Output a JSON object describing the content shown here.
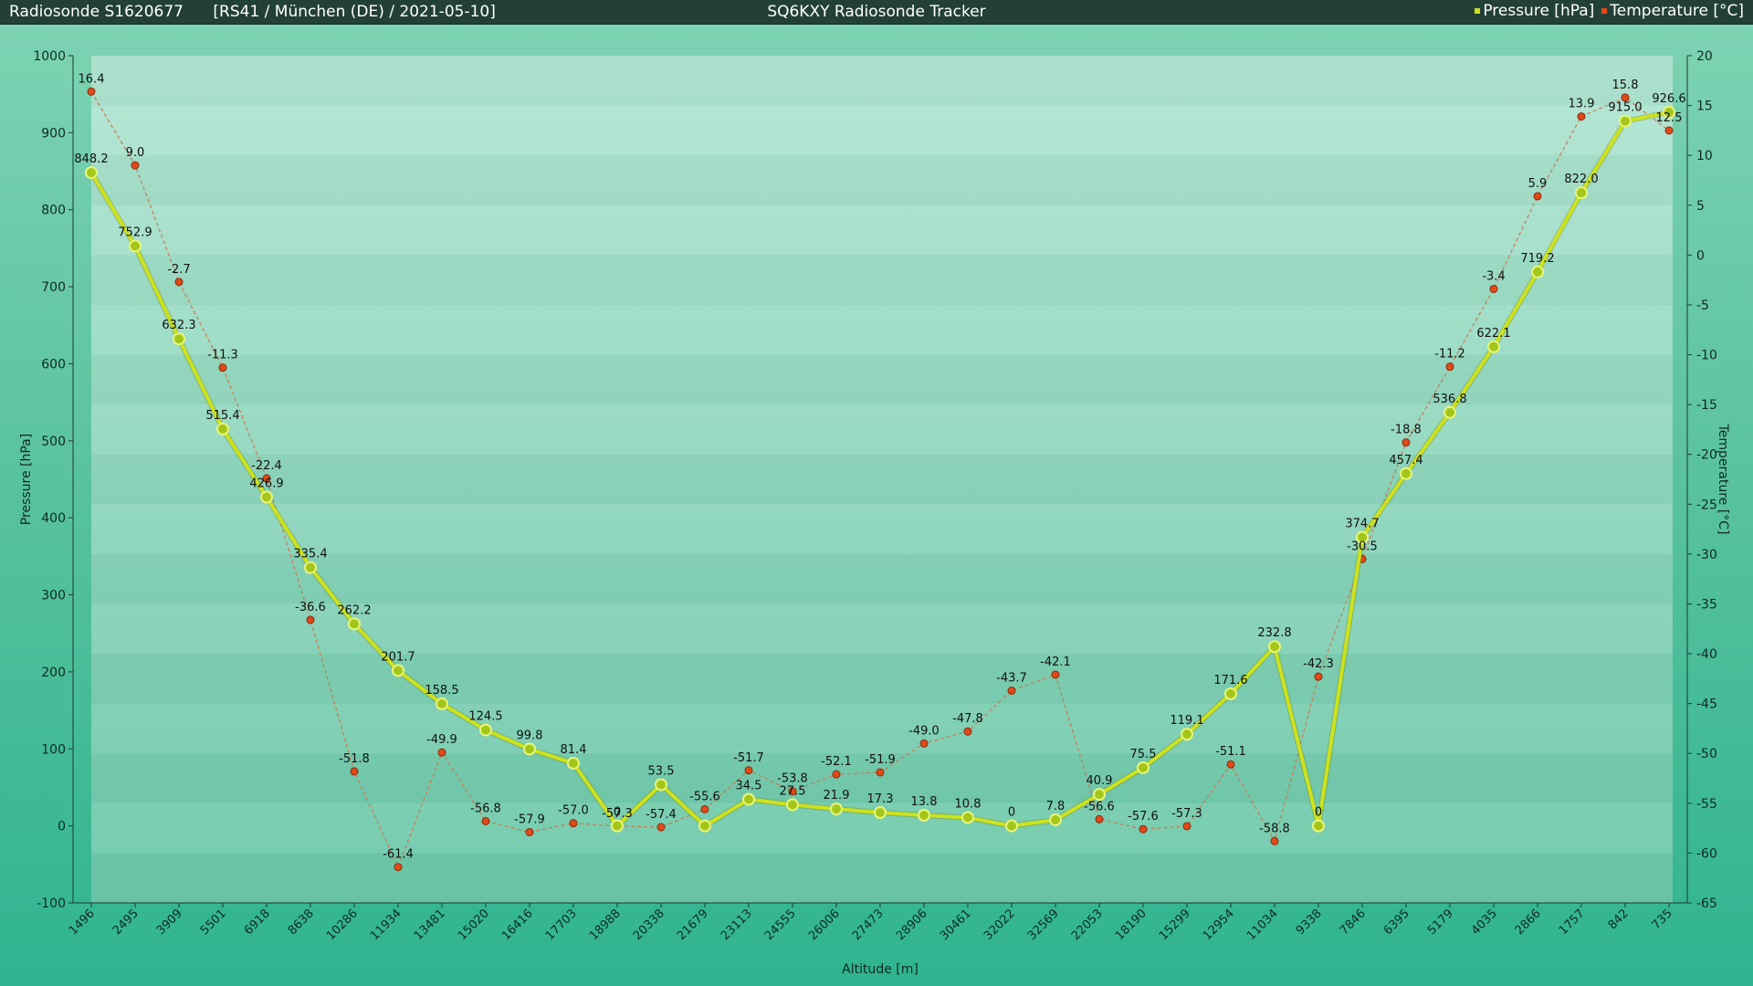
{
  "header": {
    "sonde_title": "Radiosonde S1620677",
    "sonde_info": "[RS41 / München (DE) / 2021-05-10]",
    "app_title": "SQ6KXY Radiosonde Tracker"
  },
  "colors": {
    "pressure": "#cde21d",
    "temperature": "#e04a1a"
  },
  "chart_data": {
    "type": "line",
    "xlabel": "Altitude [m]",
    "ylabel": "Pressure [hPa]",
    "y2label": "Temperature [°C]",
    "ylim": [
      -100,
      1000
    ],
    "y2lim": [
      -65,
      20
    ],
    "yticks": [
      "1000",
      "900",
      "800",
      "700",
      "600",
      "500",
      "400",
      "300",
      "200",
      "100",
      "0",
      "-100"
    ],
    "y2ticks": [
      "20",
      "15",
      "10",
      "5",
      "0",
      "-5",
      "-10",
      "-15",
      "-20",
      "-25",
      "-30",
      "-35",
      "-40",
      "-45",
      "-50",
      "-55",
      "-60",
      "-65"
    ],
    "legend": "top-right",
    "categories": [
      "1496",
      "2495",
      "3909",
      "5501",
      "6918",
      "8638",
      "10286",
      "11934",
      "13481",
      "15020",
      "16416",
      "17703",
      "18988",
      "20338",
      "21679",
      "23113",
      "24555",
      "26006",
      "27473",
      "28906",
      "30461",
      "32022",
      "32569",
      "22053",
      "18190",
      "15299",
      "12954",
      "11034",
      "9338",
      "7846",
      "6395",
      "5179",
      "4035",
      "2866",
      "1757",
      "842",
      "735"
    ],
    "series": [
      {
        "name": "Pressure [hPa]",
        "axis": "left",
        "values": [
          848.2,
          752.9,
          632.3,
          515.4,
          426.9,
          335.4,
          262.2,
          201.7,
          158.5,
          124.5,
          99.8,
          81.4,
          0,
          53.5,
          0,
          34.5,
          27.5,
          21.9,
          17.3,
          13.8,
          10.8,
          0,
          7.8,
          40.9,
          75.5,
          119.1,
          171.6,
          232.8,
          0,
          374.7,
          457.4,
          536.8,
          622.1,
          719.2,
          822.0,
          915.0,
          926.6
        ],
        "labels": [
          "848.2",
          "752.9",
          "632.3",
          "515.4",
          "426.9",
          "335.4",
          "262.2",
          "201.7",
          "158.5",
          "124.5",
          "99.8",
          "81.4",
          "0",
          "53.5",
          "",
          "34.5",
          "27.5",
          "21.9",
          "17.3",
          "13.8",
          "10.8",
          "0",
          "7.8",
          "40.9",
          "75.5",
          "119.1",
          "171.6",
          "232.8",
          "0",
          "374.7",
          "457.4",
          "536.8",
          "622.1",
          "719.2",
          "822.0",
          "915.0",
          "926.6"
        ]
      },
      {
        "name": "Temperature [°C]",
        "axis": "right",
        "values": [
          16.4,
          9.0,
          -2.7,
          -11.3,
          -22.4,
          -36.6,
          -51.8,
          -61.4,
          -49.9,
          -56.8,
          -57.9,
          -57.0,
          -57.3,
          -57.4,
          -55.6,
          -51.7,
          -53.8,
          -52.1,
          -51.9,
          -49.0,
          -47.8,
          -43.7,
          -42.1,
          -56.6,
          -57.6,
          -57.3,
          -51.1,
          -58.8,
          -42.3,
          -30.5,
          -18.8,
          -11.2,
          -3.4,
          5.9,
          13.9,
          15.8,
          12.5
        ],
        "labels": [
          "16.4",
          "9.0",
          "-2.7",
          "-11.3",
          "-22.4",
          "-36.6",
          "-51.8",
          "-61.4",
          "-49.9",
          "-56.8",
          "-57.9",
          "-57.0",
          "-57.3",
          "-57.4",
          "-55.6",
          "-51.7",
          "-53.8",
          "-52.1",
          "-51.9",
          "-49.0",
          "-47.8",
          "-43.7",
          "-42.1",
          "-56.6",
          "-57.6",
          "-57.3",
          "-51.1",
          "-58.8",
          "-42.3",
          "-30.5",
          "-18.8",
          "-11.2",
          "-3.4",
          "5.9",
          "13.9",
          "15.8",
          "12.5"
        ]
      }
    ]
  }
}
